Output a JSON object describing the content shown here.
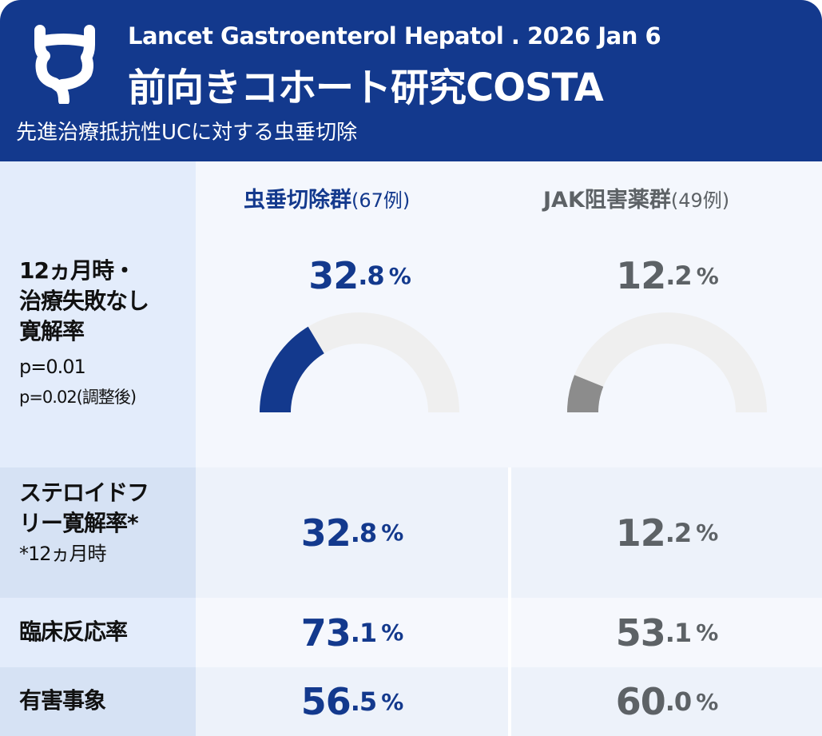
{
  "header": {
    "journal": "Lancet Gastroenterol Hepatol . 2026 Jan 6",
    "title": "前向きコホート研究COSTA",
    "subtitle": "先進治療抵抗性UCに対する虫垂切除",
    "logo_icon": "colon-icon"
  },
  "groups": [
    {
      "name": "虫垂切除群",
      "n": "(67例)"
    },
    {
      "name": "JAK阻害薬群",
      "n": "(49例)"
    }
  ],
  "colors": {
    "header": "#13398d",
    "group1": "#13398d",
    "group2": "#5d6266",
    "gauge2_fill": "#8c8c8c",
    "gauge_track": "#efefef"
  },
  "rows": [
    {
      "label_lines": [
        "12ヵ月時・",
        "治療失敗なし",
        "寛解率"
      ],
      "notes": [
        "p=0.01",
        "p=0.02(調整後)"
      ],
      "values": [
        {
          "int": "32",
          "dec": ".8",
          "unit": "%"
        },
        {
          "int": "12",
          "dec": ".2",
          "unit": "%"
        }
      ]
    },
    {
      "label_lines": [
        "ステロイドフ",
        "リー寛解率*"
      ],
      "notes": [
        "*12ヵ月時"
      ],
      "values": [
        {
          "int": "32",
          "dec": ".8",
          "unit": "%"
        },
        {
          "int": "12",
          "dec": ".2",
          "unit": "%"
        }
      ]
    },
    {
      "label_lines": [
        "臨床反応率"
      ],
      "notes": [],
      "values": [
        {
          "int": "73",
          "dec": ".1",
          "unit": "%"
        },
        {
          "int": "53",
          "dec": ".1",
          "unit": "%"
        }
      ]
    },
    {
      "label_lines": [
        "有害事象"
      ],
      "notes": [],
      "values": [
        {
          "int": "56",
          "dec": ".5",
          "unit": "%"
        },
        {
          "int": "60",
          "dec": ".0",
          "unit": "%"
        }
      ]
    }
  ],
  "chart_data": {
    "type": "gauge",
    "categories": [
      "虫垂切除群",
      "JAK阻害薬群"
    ],
    "values": [
      32.8,
      12.2
    ],
    "range": [
      0,
      100
    ],
    "unit": "%"
  }
}
